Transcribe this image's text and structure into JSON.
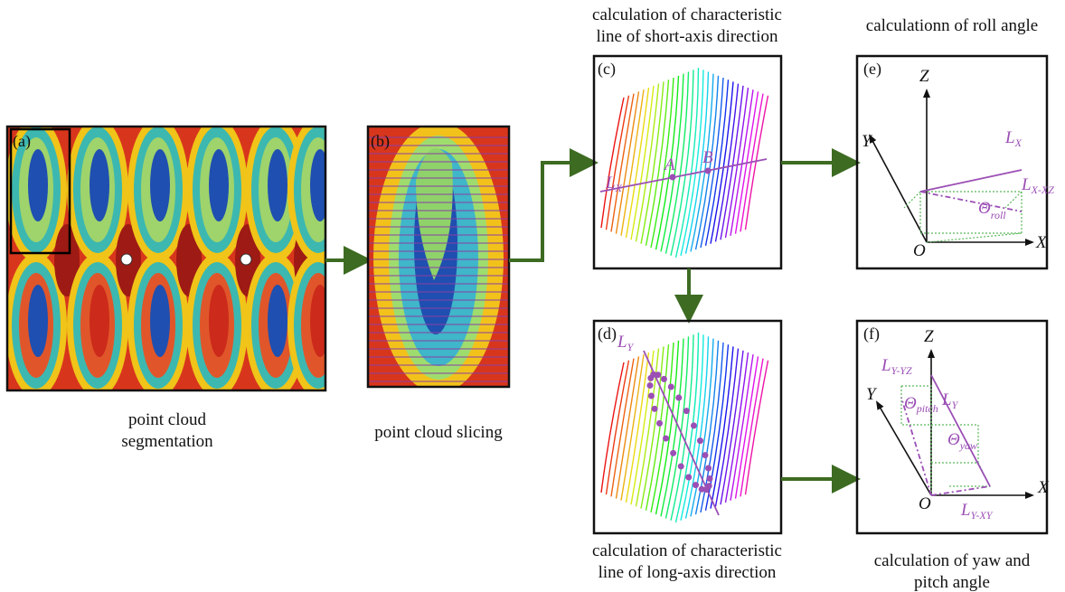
{
  "panels": {
    "a": {
      "label": "(a)",
      "caption": [
        "point cloud",
        "segmentation"
      ]
    },
    "b": {
      "label": "(b)",
      "caption": [
        "point cloud slicing"
      ]
    },
    "c": {
      "label": "(c)",
      "title": [
        "calculation of characteristic",
        "line of short-axis direction"
      ],
      "line": {
        "base": "L",
        "sub": "X"
      },
      "points": [
        "A",
        "B"
      ]
    },
    "d": {
      "label": "(d)",
      "caption": [
        "calculation of characteristic",
        "line of long-axis direction"
      ],
      "line": {
        "base": "L",
        "sub": "Y"
      }
    },
    "e": {
      "label": "(e)",
      "title": [
        "calculationn of roll angle"
      ],
      "axes": [
        "Z",
        "Y",
        "X",
        "O"
      ],
      "line": {
        "base": "L",
        "sub": "X"
      },
      "projection": {
        "base": "L",
        "sub": "X-XZ"
      },
      "angle": {
        "base": "Θ",
        "sub": "roll"
      }
    },
    "f": {
      "label": "(f)",
      "caption": [
        "calculation of yaw and",
        "pitch angle"
      ],
      "axes": [
        "Z",
        "Y",
        "X",
        "O"
      ],
      "line": {
        "base": "L",
        "sub": "Y"
      },
      "projection_yz": {
        "base": "L",
        "sub": "Y-YZ"
      },
      "projection_xy": {
        "base": "L",
        "sub": "Y-XY"
      },
      "pitch": {
        "base": "Θ",
        "sub": "pitch"
      },
      "yaw": {
        "base": "Θ",
        "sub": "yaw"
      }
    }
  }
}
